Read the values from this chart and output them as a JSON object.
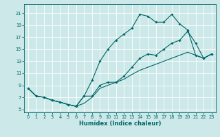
{
  "xlabel": "Humidex (Indice chaleur)",
  "bg_color": "#cce8e8",
  "grid_color": "#ffffff",
  "line_color": "#006666",
  "xlim": [
    -0.5,
    23.5
  ],
  "ylim": [
    4.5,
    22.5
  ],
  "xticks": [
    0,
    1,
    2,
    3,
    4,
    5,
    6,
    7,
    8,
    9,
    10,
    11,
    12,
    13,
    14,
    15,
    16,
    17,
    18,
    19,
    20,
    21,
    22,
    23
  ],
  "yticks": [
    5,
    7,
    9,
    11,
    13,
    15,
    17,
    19,
    21
  ],
  "line1_x": [
    0,
    1,
    2,
    3,
    4,
    5,
    6,
    7,
    8,
    9,
    10,
    11,
    12,
    13,
    14,
    15,
    16,
    17,
    18,
    19,
    20,
    21,
    22,
    23
  ],
  "line1_y": [
    8.5,
    7.2,
    7.0,
    6.5,
    6.2,
    5.8,
    5.5,
    7.2,
    9.8,
    13.0,
    15.0,
    16.5,
    17.5,
    18.5,
    20.8,
    20.5,
    19.5,
    19.5,
    20.8,
    19.2,
    18.2,
    14.0,
    13.5,
    14.2
  ],
  "line2_x": [
    0,
    1,
    2,
    3,
    4,
    5,
    6,
    7,
    8,
    9,
    10,
    11,
    12,
    13,
    14,
    15,
    16,
    17,
    18,
    19,
    20,
    21,
    22,
    23
  ],
  "line2_y": [
    8.5,
    7.2,
    7.0,
    6.5,
    6.2,
    5.8,
    5.5,
    7.2,
    7.2,
    9.0,
    9.5,
    9.5,
    10.5,
    12.0,
    13.5,
    14.2,
    14.0,
    15.0,
    16.0,
    16.5,
    18.0,
    16.0,
    13.5,
    14.2
  ],
  "line3_x": [
    0,
    1,
    2,
    3,
    4,
    5,
    6,
    7,
    8,
    9,
    10,
    11,
    12,
    13,
    14,
    15,
    16,
    17,
    18,
    19,
    20,
    21,
    22,
    23
  ],
  "line3_y": [
    8.5,
    7.2,
    7.0,
    6.5,
    6.2,
    5.8,
    5.5,
    6.0,
    7.0,
    8.5,
    9.0,
    9.5,
    10.0,
    10.8,
    11.5,
    12.0,
    12.5,
    13.0,
    13.5,
    14.0,
    14.5,
    14.0,
    13.5,
    14.2
  ]
}
